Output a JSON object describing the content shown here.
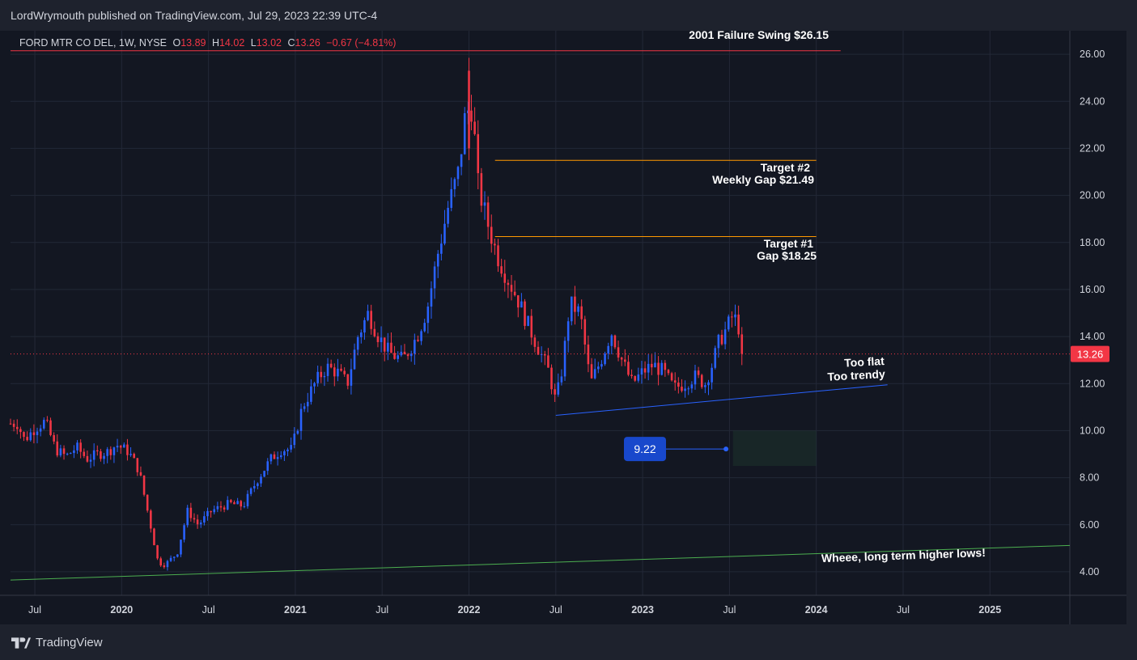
{
  "header": {
    "publisher_text": "LordWrymouth published on TradingView.com, Jul 29, 2023 22:39 UTC-4"
  },
  "legend": {
    "symbol": "FORD MTR CO DEL, 1W, NYSE",
    "open_label": "O",
    "open": "13.89",
    "high_label": "H",
    "high": "14.02",
    "low_label": "L",
    "low": "13.02",
    "close_label": "C",
    "close": "13.26",
    "change": "−0.67 (−4.81%)"
  },
  "footer": {
    "brand": "TradingView"
  },
  "colors": {
    "background": "#131722",
    "bull": "#2962ff",
    "bear": "#f23645",
    "grid": "#232837",
    "axis_text": "#d1d4dc",
    "orange": "#ff9800",
    "green_line": "#4caf50",
    "blue_trend": "#2962ff",
    "price_label_bg": "#f23645"
  },
  "chart_data": {
    "type": "candlestick",
    "title": "FORD MTR CO DEL, 1W, NYSE",
    "interval": "1W",
    "ylim": [
      3.0,
      27.0
    ],
    "y_ticks": [
      "4.00",
      "6.00",
      "8.00",
      "10.00",
      "12.00",
      "14.00",
      "16.00",
      "18.00",
      "20.00",
      "22.00",
      "24.00",
      "26.00"
    ],
    "x_ticks": [
      {
        "label": "Jul",
        "t": 2019.5,
        "bold": false
      },
      {
        "label": "2020",
        "t": 2020.0,
        "bold": true
      },
      {
        "label": "Jul",
        "t": 2020.5,
        "bold": false
      },
      {
        "label": "2021",
        "t": 2021.0,
        "bold": true
      },
      {
        "label": "Jul",
        "t": 2021.5,
        "bold": false
      },
      {
        "label": "2022",
        "t": 2022.0,
        "bold": true
      },
      {
        "label": "Jul",
        "t": 2022.5,
        "bold": false
      },
      {
        "label": "2023",
        "t": 2023.0,
        "bold": true
      },
      {
        "label": "Jul",
        "t": 2023.5,
        "bold": false
      },
      {
        "label": "2024",
        "t": 2024.0,
        "bold": true
      },
      {
        "label": "Jul",
        "t": 2024.5,
        "bold": false
      },
      {
        "label": "2025",
        "t": 2025.0,
        "bold": true
      }
    ],
    "xlim": [
      2019.36,
      2025.46
    ],
    "last_price": "13.26",
    "anchors": [
      [
        2019.36,
        10.3
      ],
      [
        2019.4,
        10.3
      ],
      [
        2019.44,
        9.6
      ],
      [
        2019.5,
        10.1
      ],
      [
        2019.56,
        10.4
      ],
      [
        2019.62,
        9.2
      ],
      [
        2019.68,
        8.9
      ],
      [
        2019.74,
        9.3
      ],
      [
        2019.8,
        8.8
      ],
      [
        2019.86,
        9.0
      ],
      [
        2019.92,
        9.1
      ],
      [
        2019.97,
        9.4
      ],
      [
        2020.04,
        9.1
      ],
      [
        2020.1,
        8.3
      ],
      [
        2020.16,
        6.2
      ],
      [
        2020.21,
        4.4
      ],
      [
        2020.25,
        4.3
      ],
      [
        2020.32,
        4.8
      ],
      [
        2020.38,
        6.6
      ],
      [
        2020.44,
        6.0
      ],
      [
        2020.52,
        6.6
      ],
      [
        2020.62,
        6.9
      ],
      [
        2020.7,
        6.8
      ],
      [
        2020.78,
        7.9
      ],
      [
        2020.86,
        8.8
      ],
      [
        2020.92,
        9.2
      ],
      [
        2020.98,
        9.2
      ],
      [
        2021.04,
        11.0
      ],
      [
        2021.12,
        12.1
      ],
      [
        2021.18,
        12.7
      ],
      [
        2021.24,
        12.5
      ],
      [
        2021.3,
        12.0
      ],
      [
        2021.36,
        14.0
      ],
      [
        2021.42,
        15.0
      ],
      [
        2021.48,
        14.0
      ],
      [
        2021.54,
        13.3
      ],
      [
        2021.62,
        13.0
      ],
      [
        2021.7,
        14.0
      ],
      [
        2021.76,
        15.2
      ],
      [
        2021.82,
        17.5
      ],
      [
        2021.88,
        19.5
      ],
      [
        2021.94,
        21.0
      ],
      [
        2021.98,
        23.5
      ],
      [
        2022.02,
        23.8
      ],
      [
        2022.05,
        20.5
      ],
      [
        2022.1,
        19.0
      ],
      [
        2022.16,
        17.5
      ],
      [
        2022.22,
        16.5
      ],
      [
        2022.28,
        15.6
      ],
      [
        2022.34,
        14.5
      ],
      [
        2022.4,
        13.5
      ],
      [
        2022.46,
        12.5
      ],
      [
        2022.5,
        11.2
      ],
      [
        2022.54,
        12.8
      ],
      [
        2022.58,
        15.4
      ],
      [
        2022.64,
        15.0
      ],
      [
        2022.7,
        12.0
      ],
      [
        2022.76,
        13.0
      ],
      [
        2022.82,
        14.2
      ],
      [
        2022.88,
        13.0
      ],
      [
        2022.94,
        12.0
      ],
      [
        2023.0,
        12.5
      ],
      [
        2023.06,
        12.8
      ],
      [
        2023.12,
        12.5
      ],
      [
        2023.18,
        11.8
      ],
      [
        2023.24,
        12.0
      ],
      [
        2023.3,
        12.3
      ],
      [
        2023.36,
        12.0
      ],
      [
        2023.4,
        12.8
      ],
      [
        2023.44,
        13.8
      ],
      [
        2023.48,
        14.3
      ],
      [
        2023.52,
        14.9
      ],
      [
        2023.55,
        14.5
      ],
      [
        2023.58,
        13.26
      ]
    ],
    "lines": [
      {
        "name": "failure-swing-line",
        "t1": 2019.36,
        "v1": 26.15,
        "t2": 2024.14,
        "v2": 26.15,
        "color": "#f23645"
      },
      {
        "name": "target2-line",
        "t1": 2022.15,
        "v1": 21.49,
        "t2": 2024.0,
        "v2": 21.49,
        "color": "#ff9800"
      },
      {
        "name": "target1-line",
        "t1": 2022.15,
        "v1": 18.25,
        "t2": 2024.0,
        "v2": 18.25,
        "color": "#ff9800"
      },
      {
        "name": "trendline-short",
        "t1": 2022.5,
        "v1": 10.65,
        "t2": 2024.41,
        "v2": 11.95,
        "color": "#2962ff"
      },
      {
        "name": "trendline-long",
        "t1": 2019.36,
        "v1": 3.65,
        "t2": 2025.46,
        "v2": 5.12,
        "color": "#4caf50"
      }
    ],
    "annotations": {
      "failure_swing": "2001 Failure Swing $26.15",
      "target2_line1": "Target #2",
      "target2_line2": "Weekly Gap $21.49",
      "target1_line1": "Target #1",
      "target1_line2": "Gap $18.25",
      "too_flat": "Too flat",
      "too_trendy": "Too trendy",
      "higher_lows": "Wheee, long term higher lows!",
      "callout_value": "9.22"
    }
  }
}
